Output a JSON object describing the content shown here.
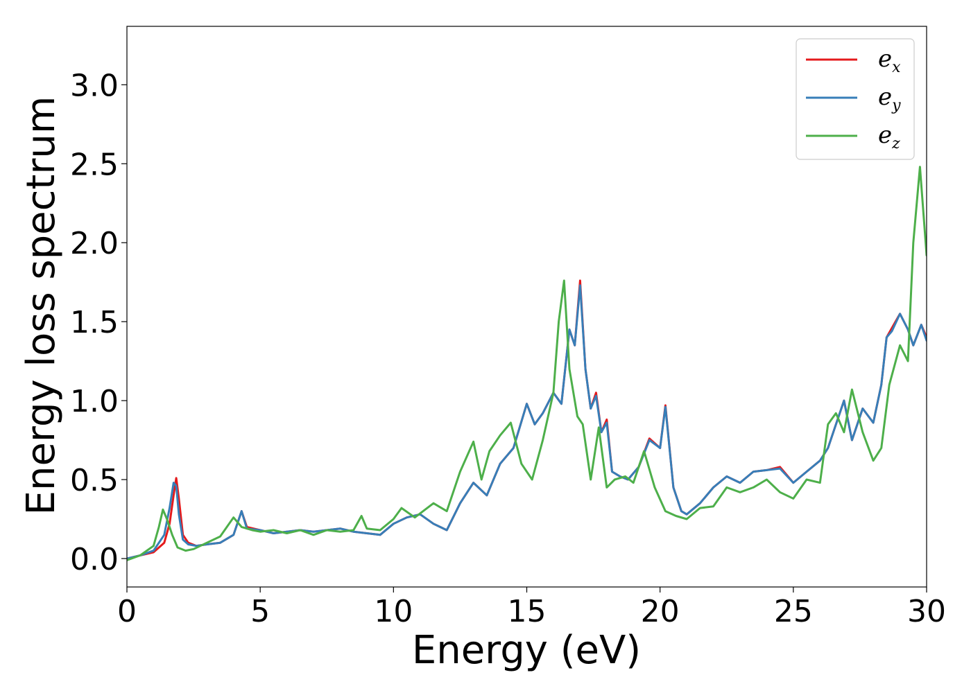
{
  "chart_data": {
    "type": "line",
    "xlabel": "Energy (eV)",
    "ylabel": "Energy loss spectrum",
    "xlim": [
      0,
      30
    ],
    "ylim": [
      -0.18,
      3.37
    ],
    "xticks": [
      "0",
      "5",
      "10",
      "15",
      "20",
      "25",
      "30"
    ],
    "yticks": [
      "0.0",
      "0.5",
      "1.0",
      "1.5",
      "2.0",
      "2.5",
      "3.0"
    ],
    "grid": false,
    "legend_position": "top-right",
    "series": [
      {
        "name": "e_x",
        "legend_base": "e",
        "legend_sub": "x",
        "color": "#e41a1c",
        "x": [
          0,
          0.5,
          1.0,
          1.4,
          1.6,
          1.75,
          1.85,
          1.95,
          2.1,
          2.3,
          2.6,
          3.0,
          3.5,
          4.0,
          4.3,
          4.5,
          5.0,
          5.5,
          6.0,
          6.5,
          7.0,
          7.5,
          8.0,
          8.5,
          9.0,
          9.5,
          10.0,
          10.5,
          11.0,
          11.5,
          12.0,
          12.5,
          13.0,
          13.5,
          14.0,
          14.5,
          15.0,
          15.3,
          15.6,
          16.0,
          16.3,
          16.6,
          16.8,
          17.0,
          17.2,
          17.4,
          17.6,
          17.8,
          18.0,
          18.2,
          18.5,
          18.8,
          19.2,
          19.6,
          20.0,
          20.2,
          20.5,
          20.8,
          21.0,
          21.5,
          22.0,
          22.5,
          23.0,
          23.5,
          24.0,
          24.5,
          25.0,
          25.5,
          26.0,
          26.3,
          26.6,
          26.9,
          27.2,
          27.6,
          28.0,
          28.3,
          28.5,
          28.7,
          29.0,
          29.3,
          29.5,
          29.8,
          30.0
        ],
        "y": [
          0.0,
          0.02,
          0.04,
          0.1,
          0.22,
          0.4,
          0.51,
          0.38,
          0.15,
          0.1,
          0.08,
          0.09,
          0.1,
          0.15,
          0.3,
          0.2,
          0.18,
          0.16,
          0.17,
          0.18,
          0.17,
          0.18,
          0.19,
          0.17,
          0.16,
          0.15,
          0.22,
          0.26,
          0.28,
          0.22,
          0.18,
          0.35,
          0.48,
          0.4,
          0.6,
          0.7,
          0.98,
          0.85,
          0.92,
          1.05,
          0.98,
          1.45,
          1.35,
          1.76,
          1.2,
          0.95,
          1.05,
          0.8,
          0.88,
          0.55,
          0.52,
          0.5,
          0.58,
          0.76,
          0.7,
          0.97,
          0.45,
          0.3,
          0.28,
          0.35,
          0.45,
          0.52,
          0.48,
          0.55,
          0.56,
          0.58,
          0.48,
          0.55,
          0.62,
          0.7,
          0.85,
          1.0,
          0.75,
          0.95,
          0.86,
          1.1,
          1.4,
          1.46,
          1.55,
          1.45,
          1.35,
          1.48,
          1.4
        ]
      },
      {
        "name": "e_y",
        "legend_base": "e",
        "legend_sub": "y",
        "color": "#377eb8",
        "x": [
          0,
          0.5,
          1.0,
          1.4,
          1.6,
          1.75,
          1.85,
          1.95,
          2.1,
          2.3,
          2.6,
          3.0,
          3.5,
          4.0,
          4.3,
          4.5,
          5.0,
          5.5,
          6.0,
          6.5,
          7.0,
          7.5,
          8.0,
          8.5,
          9.0,
          9.5,
          10.0,
          10.5,
          11.0,
          11.5,
          12.0,
          12.5,
          13.0,
          13.5,
          14.0,
          14.5,
          15.0,
          15.3,
          15.6,
          16.0,
          16.3,
          16.6,
          16.8,
          17.0,
          17.2,
          17.4,
          17.6,
          17.8,
          18.0,
          18.2,
          18.5,
          18.8,
          19.2,
          19.6,
          20.0,
          20.2,
          20.5,
          20.8,
          21.0,
          21.5,
          22.0,
          22.5,
          23.0,
          23.5,
          24.0,
          24.5,
          25.0,
          25.5,
          26.0,
          26.3,
          26.6,
          26.9,
          27.2,
          27.6,
          28.0,
          28.3,
          28.5,
          28.7,
          29.0,
          29.3,
          29.5,
          29.8,
          30.0
        ],
        "y": [
          0.0,
          0.02,
          0.05,
          0.15,
          0.32,
          0.48,
          0.46,
          0.28,
          0.12,
          0.09,
          0.08,
          0.09,
          0.1,
          0.15,
          0.3,
          0.19,
          0.18,
          0.16,
          0.17,
          0.18,
          0.17,
          0.18,
          0.19,
          0.17,
          0.16,
          0.15,
          0.22,
          0.26,
          0.28,
          0.22,
          0.18,
          0.35,
          0.48,
          0.4,
          0.6,
          0.7,
          0.98,
          0.85,
          0.92,
          1.05,
          0.98,
          1.45,
          1.35,
          1.73,
          1.2,
          0.95,
          1.03,
          0.8,
          0.86,
          0.55,
          0.52,
          0.5,
          0.58,
          0.75,
          0.7,
          0.96,
          0.45,
          0.3,
          0.28,
          0.35,
          0.45,
          0.52,
          0.48,
          0.55,
          0.56,
          0.57,
          0.48,
          0.55,
          0.62,
          0.7,
          0.85,
          1.0,
          0.75,
          0.95,
          0.86,
          1.1,
          1.4,
          1.44,
          1.55,
          1.45,
          1.35,
          1.48,
          1.38
        ]
      },
      {
        "name": "e_z",
        "legend_base": "e",
        "legend_sub": "z",
        "color": "#4daf4a",
        "x": [
          0,
          0.5,
          1.0,
          1.2,
          1.35,
          1.5,
          1.7,
          1.9,
          2.2,
          2.5,
          3.0,
          3.5,
          4.0,
          4.3,
          4.7,
          5.0,
          5.5,
          6.0,
          6.5,
          7.0,
          7.5,
          8.0,
          8.5,
          8.8,
          9.0,
          9.5,
          10.0,
          10.3,
          10.8,
          11.5,
          12.0,
          12.5,
          13.0,
          13.3,
          13.6,
          14.0,
          14.4,
          14.8,
          15.2,
          15.6,
          16.0,
          16.2,
          16.4,
          16.6,
          16.9,
          17.1,
          17.4,
          17.7,
          18.0,
          18.3,
          18.7,
          19.0,
          19.4,
          19.8,
          20.2,
          20.6,
          21.0,
          21.5,
          22.0,
          22.5,
          23.0,
          23.5,
          24.0,
          24.5,
          25.0,
          25.5,
          26.0,
          26.3,
          26.6,
          26.9,
          27.2,
          27.6,
          28.0,
          28.3,
          28.6,
          29.0,
          29.3,
          29.5,
          29.75,
          30.0
        ],
        "y": [
          -0.01,
          0.02,
          0.08,
          0.2,
          0.31,
          0.25,
          0.15,
          0.07,
          0.05,
          0.06,
          0.1,
          0.14,
          0.26,
          0.2,
          0.18,
          0.17,
          0.18,
          0.16,
          0.18,
          0.15,
          0.18,
          0.17,
          0.18,
          0.27,
          0.19,
          0.18,
          0.25,
          0.32,
          0.26,
          0.35,
          0.3,
          0.55,
          0.74,
          0.5,
          0.68,
          0.78,
          0.86,
          0.6,
          0.5,
          0.75,
          1.05,
          1.5,
          1.76,
          1.2,
          0.9,
          0.85,
          0.5,
          0.83,
          0.45,
          0.5,
          0.52,
          0.48,
          0.68,
          0.45,
          0.3,
          0.27,
          0.25,
          0.32,
          0.33,
          0.45,
          0.42,
          0.45,
          0.5,
          0.42,
          0.38,
          0.5,
          0.48,
          0.85,
          0.92,
          0.8,
          1.07,
          0.8,
          0.62,
          0.7,
          1.1,
          1.35,
          1.25,
          2.0,
          2.48,
          1.92
        ]
      }
    ]
  }
}
